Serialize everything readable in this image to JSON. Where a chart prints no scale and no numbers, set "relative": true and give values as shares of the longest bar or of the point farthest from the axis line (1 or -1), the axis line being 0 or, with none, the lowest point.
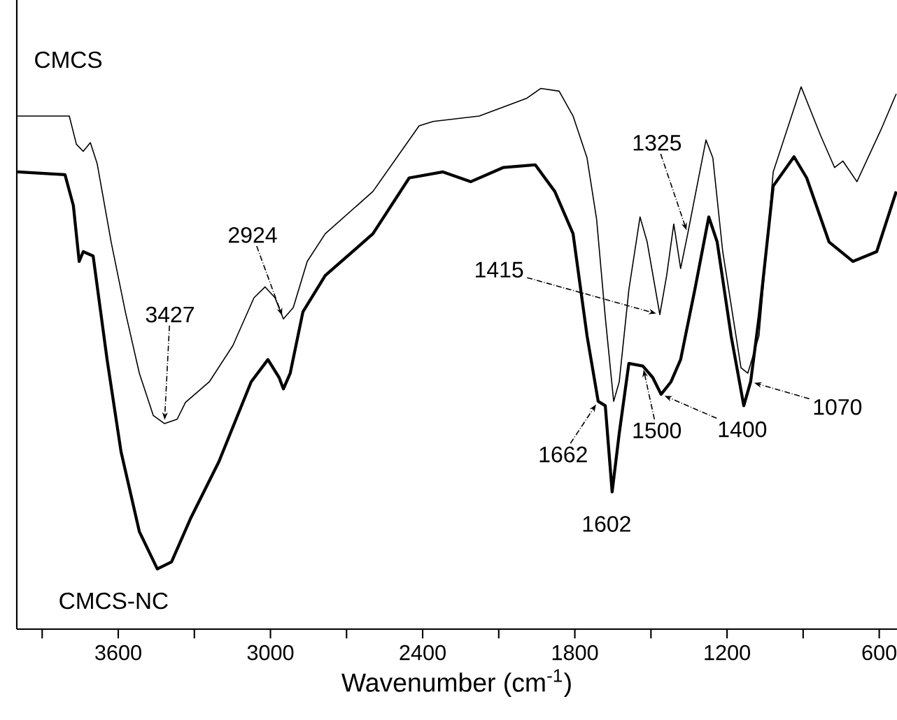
{
  "chart_data": {
    "type": "line",
    "relative": true,
    "xlabel": "Wavenumber (cm$^{-1}$)",
    "xlim": [
      4000,
      530
    ],
    "xticks": [
      {
        "value": 3900,
        "label": null
      },
      3600,
      {
        "value": 3300,
        "label": null
      },
      3000,
      {
        "value": 2700,
        "label": null
      },
      2400,
      {
        "value": 2100,
        "label": null
      },
      1800,
      {
        "value": 1500,
        "label": null
      },
      1200,
      {
        "value": 900,
        "label": null
      },
      600
    ],
    "grid": false,
    "legend": false,
    "marker": "none",
    "line_style": "solid",
    "series": [
      {
        "name": "CMCS",
        "color": "#000000",
        "x": [
          3997,
          3793,
          3765,
          3738,
          3710,
          3683,
          3628,
          3572,
          3517,
          3462,
          3418,
          3368,
          3335,
          3241,
          3148,
          3065,
          3021,
          2982,
          2949,
          2910,
          2855,
          2784,
          2596,
          2414,
          2359,
          2177,
          1989,
          1934,
          1862,
          1807,
          1752,
          1714,
          1680,
          1647,
          1625,
          1587,
          1543,
          1515,
          1465,
          1438,
          1410,
          1383,
          1355,
          1283,
          1256,
          1217,
          1145,
          1118,
          1074,
          1018,
          908,
          831,
          776,
          743,
          688,
          594,
          533
        ],
        "values": [
          0.946,
          0.946,
          0.894,
          0.881,
          0.897,
          0.858,
          0.714,
          0.585,
          0.472,
          0.394,
          0.379,
          0.387,
          0.418,
          0.456,
          0.523,
          0.611,
          0.631,
          0.611,
          0.572,
          0.593,
          0.678,
          0.729,
          0.807,
          0.928,
          0.936,
          0.946,
          0.979,
          0.997,
          0.992,
          0.946,
          0.869,
          0.755,
          0.575,
          0.42,
          0.456,
          0.626,
          0.76,
          0.714,
          0.58,
          0.652,
          0.747,
          0.665,
          0.729,
          0.902,
          0.869,
          0.696,
          0.482,
          0.472,
          0.541,
          0.843,
          1.0,
          0.91,
          0.851,
          0.863,
          0.825,
          0.92,
          0.987
        ]
      },
      {
        "name": "CMCS-NC",
        "color": "#000000",
        "x": [
          3997,
          3810,
          3777,
          3754,
          3738,
          3699,
          3644,
          3589,
          3517,
          3446,
          3390,
          3313,
          3203,
          3076,
          3010,
          2966,
          2949,
          2922,
          2872,
          2784,
          2596,
          2453,
          2320,
          2210,
          2083,
          1956,
          1879,
          1807,
          1752,
          1708,
          1680,
          1653,
          1625,
          1587,
          1532,
          1493,
          1460,
          1421,
          1383,
          1327,
          1272,
          1239,
          1184,
          1134,
          1107,
          1074,
          1018,
          936,
          886,
          798,
          704,
          610,
          533
        ],
        "values": [
          0.843,
          0.838,
          0.781,
          0.678,
          0.696,
          0.688,
          0.497,
          0.327,
          0.18,
          0.111,
          0.124,
          0.206,
          0.309,
          0.456,
          0.497,
          0.464,
          0.443,
          0.472,
          0.585,
          0.652,
          0.729,
          0.832,
          0.843,
          0.825,
          0.851,
          0.856,
          0.807,
          0.729,
          0.541,
          0.42,
          0.412,
          0.253,
          0.361,
          0.49,
          0.485,
          0.464,
          0.433,
          0.456,
          0.497,
          0.626,
          0.76,
          0.714,
          0.541,
          0.412,
          0.456,
          0.575,
          0.817,
          0.871,
          0.832,
          0.714,
          0.678,
          0.696,
          0.807
        ]
      }
    ],
    "annotations": [
      {
        "text": "3427",
        "x": 3418,
        "y": 0.379
      },
      {
        "text": "2924",
        "x": 2949,
        "y": 0.572
      },
      {
        "text": "1325",
        "x": 1355,
        "y": 0.729
      },
      {
        "text": "1415",
        "x": 1465,
        "y": 0.58
      },
      {
        "text": "1602",
        "x": 1653,
        "y": 0.253
      },
      {
        "text": "1070",
        "x": 1107,
        "y": 0.456
      },
      {
        "text": "1662",
        "x": 1708,
        "y": 0.42
      },
      {
        "text": "1500",
        "x": 1532,
        "y": 0.485
      },
      {
        "text": "1400",
        "x": 1460,
        "y": 0.433
      }
    ]
  }
}
